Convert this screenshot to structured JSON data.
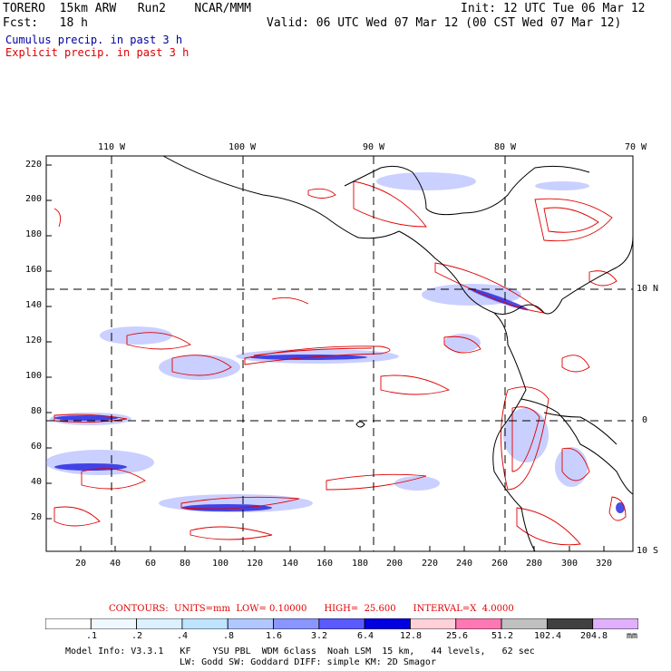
{
  "header": {
    "model_name": "TORERO  15km ARW   Run2    NCAR/MMM",
    "init": "Init: 12 UTC Tue 06 Mar 12",
    "forecast": "Fcst:   18 h",
    "valid": "Valid: 06 UTC Wed 07 Mar 12 (00 CST Wed 07 Mar 12)"
  },
  "legend": {
    "cumulus": "Cumulus precip. in past 3 h",
    "explicit": "Explicit precip. in past 3 h",
    "cumulus_color": "#0000a0",
    "explicit_color": "#e00000"
  },
  "map": {
    "lon_labels": [
      "110 W",
      "100 W",
      "90 W",
      "80 W",
      "70 W"
    ],
    "lat_labels": [
      "10 N",
      "0",
      "10 S"
    ],
    "y_ticks": [
      "220",
      "200",
      "180",
      "160",
      "140",
      "120",
      "100",
      "80",
      "60",
      "40",
      "20"
    ],
    "x_ticks": [
      "20",
      "40",
      "60",
      "80",
      "100",
      "120",
      "140",
      "160",
      "180",
      "200",
      "220",
      "240",
      "260",
      "280",
      "300",
      "320"
    ],
    "colors": {
      "cumulus": "#3a3aff",
      "explicit": "#e00000",
      "coast": "#000000"
    }
  },
  "contours": "CONTOURS:  UNITS=mm  LOW= 0.10000      HIGH=  25.600      INTERVAL=X  4.0000",
  "colorbar": {
    "labels": [
      ".1",
      ".2",
      ".4",
      ".8",
      "1.6",
      "3.2",
      "6.4",
      "12.8",
      "25.6",
      "51.2",
      "102.4",
      "204.8"
    ],
    "unit": "mm",
    "colors": [
      "#ffffff",
      "#f0f8ff",
      "#dcf0ff",
      "#bfe4ff",
      "#b0c8ff",
      "#8a96ff",
      "#5a5aff",
      "#0000e0",
      "#ffd0d8",
      "#ff78b4",
      "#c0c0c0",
      "#404040",
      "#e0b0ff"
    ]
  },
  "model_info": {
    "line1": "Model Info: V3.3.1   KF    YSU PBL  WDM 6class  Noah LSM  15 km,   44 levels,   62 sec",
    "line2": "LW: Godd SW: Goddard DIFF: simple KM: 2D Smagor"
  }
}
